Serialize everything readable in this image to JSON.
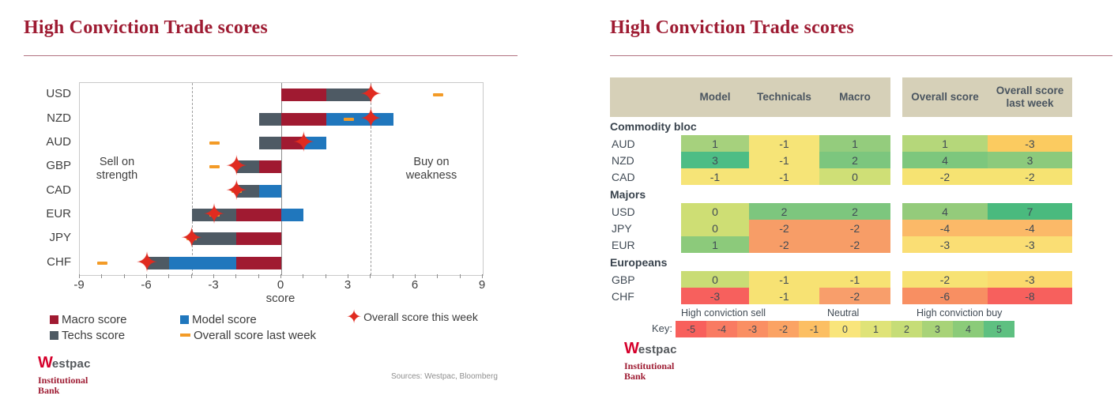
{
  "left": {
    "title": "High Conviction Trade scores",
    "xlabel": "score",
    "sell_line1": "Sell on",
    "sell_line2": "strength",
    "buy_line1": "Buy on",
    "buy_line2": "weakness",
    "sources": "Sources: Westpac, Bloomberg"
  },
  "right": {
    "title": "High Conviction Trade scores",
    "key_label": "Key:",
    "key_groups": [
      "High conviction sell",
      "Neutral",
      "High conviction buy"
    ]
  },
  "brand": {
    "w": "W",
    "name_rest": "estpac",
    "sub1": "Institutional",
    "sub2": "Bank"
  },
  "chart_data": [
    {
      "type": "bar",
      "orientation": "horizontal-stacked",
      "title": "High Conviction Trade scores",
      "categories": [
        "USD",
        "NZD",
        "AUD",
        "GBP",
        "CAD",
        "EUR",
        "JPY",
        "CHF"
      ],
      "series": [
        {
          "name": "Macro score",
          "role": "bar",
          "color": "#a01a31",
          "values": [
            2,
            2,
            1,
            -1,
            0,
            -2,
            -2,
            -2
          ]
        },
        {
          "name": "Model score",
          "role": "bar",
          "color": "#2077bd",
          "values": [
            0,
            3,
            1,
            0,
            -1,
            1,
            0,
            -3
          ]
        },
        {
          "name": "Techs score",
          "role": "bar",
          "color": "#4e5a64",
          "values": [
            2,
            -1,
            -1,
            -1,
            -1,
            -2,
            -2,
            -1
          ]
        },
        {
          "name": "Overall score this week",
          "role": "marker-star",
          "color": "#e02b20",
          "values": [
            4,
            4,
            1,
            -2,
            -2,
            -3,
            -4,
            -6
          ]
        },
        {
          "name": "Overall score last week",
          "role": "marker-dash",
          "color": "#f39b27",
          "values": [
            7,
            3,
            -3,
            -3,
            -2,
            -3,
            -4,
            -8
          ]
        }
      ],
      "xlabel": "score",
      "xlim": [
        -9,
        9
      ],
      "xticks": [
        -9,
        -6,
        -3,
        0,
        3,
        6,
        9
      ],
      "minor_tick_step": 1,
      "threshold_lines": [
        -4,
        4
      ],
      "zero_line": 0,
      "annotations": [
        "Sell on strength",
        "Buy on weakness"
      ],
      "grid": false,
      "legend_position": "bottom"
    },
    {
      "type": "table",
      "columns": [
        "Model",
        "Technicals",
        "Macro",
        "Overall score",
        "Overall score last week"
      ],
      "groups": [
        {
          "name": "Commodity bloc",
          "rows": [
            {
              "label": "AUD",
              "values": [
                "1",
                "-1",
                "1",
                "1",
                "-3"
              ],
              "colors": [
                "#a6d17d",
                "#f6e477",
                "#94cc7d",
                "#b5d77a",
                "#fbcb60"
              ]
            },
            {
              "label": "NZD",
              "values": [
                "3",
                "-1",
                "2",
                "4",
                "3"
              ],
              "colors": [
                "#4dbd85",
                "#f6e477",
                "#7cc67e",
                "#7dc77d",
                "#8cca7c"
              ]
            },
            {
              "label": "CAD",
              "values": [
                "-1",
                "-1",
                "0",
                "-2",
                "-2"
              ],
              "colors": [
                "#f6e477",
                "#f6e477",
                "#cfdf76",
                "#f6e372",
                "#f6e372"
              ]
            }
          ]
        },
        {
          "name": "Majors",
          "rows": [
            {
              "label": "USD",
              "values": [
                "0",
                "2",
                "2",
                "4",
                "7"
              ],
              "colors": [
                "#cede74",
                "#7dc67e",
                "#7dc67e",
                "#94cb7b",
                "#4aba7e"
              ]
            },
            {
              "label": "JPY",
              "values": [
                "0",
                "-2",
                "-2",
                "-4",
                "-4"
              ],
              "colors": [
                "#cede74",
                "#f79d67",
                "#f79d67",
                "#fbb968",
                "#fbb968"
              ]
            },
            {
              "label": "EUR",
              "values": [
                "1",
                "-2",
                "-2",
                "-3",
                "-3"
              ],
              "colors": [
                "#8cca7b",
                "#f79d67",
                "#f79d67",
                "#fade74",
                "#fade74"
              ]
            }
          ]
        },
        {
          "name": "Europeans",
          "rows": [
            {
              "label": "GBP",
              "values": [
                "0",
                "-1",
                "-1",
                "-2",
                "-3"
              ],
              "colors": [
                "#c9dc75",
                "#f7e273",
                "#f7e273",
                "#f7e273",
                "#fbd96d"
              ]
            },
            {
              "label": "CHF",
              "values": [
                "-3",
                "-1",
                "-2",
                "-6",
                "-8"
              ],
              "colors": [
                "#f7605d",
                "#f7e273",
                "#f89e6b",
                "#f88f62",
                "#f7605d"
              ]
            }
          ]
        }
      ],
      "key": {
        "values": [
          "-5",
          "-4",
          "-3",
          "-2",
          "-1",
          "0",
          "1",
          "2",
          "3",
          "4",
          "5"
        ],
        "colors": [
          "#f8605c",
          "#f97b62",
          "#fa8f63",
          "#fba364",
          "#fcbf63",
          "#f9e57b",
          "#dfe378",
          "#c6dd77",
          "#a8d378",
          "#8bcb79",
          "#5ec081"
        ]
      }
    }
  ]
}
